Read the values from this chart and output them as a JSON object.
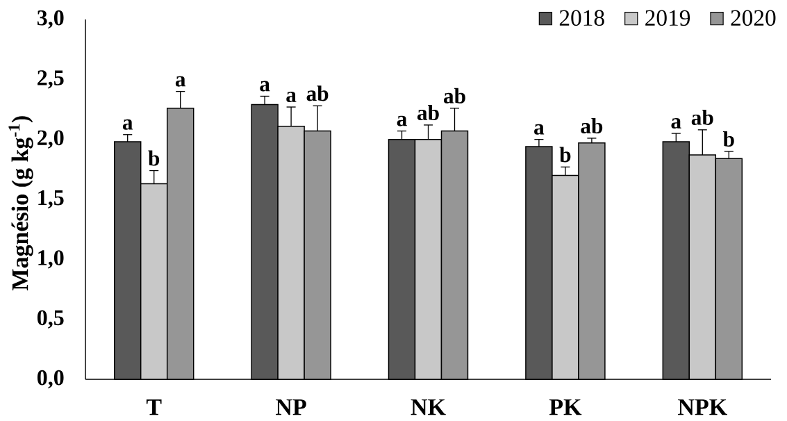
{
  "chart_data": {
    "type": "bar",
    "ylabel": "Magnésio (g kg$^{-1}$)",
    "categories": [
      "T",
      "NP",
      "NK",
      "PK",
      "NPK"
    ],
    "series": [
      {
        "name": "2018",
        "color": "#595959",
        "values": [
          1.98,
          2.29,
          2.0,
          1.94,
          1.98
        ],
        "errors": [
          [
            1.98,
            2.04
          ],
          [
            2.29,
            2.36
          ],
          [
            2.0,
            2.07
          ],
          [
            1.94,
            2.0
          ],
          [
            1.98,
            2.05
          ]
        ],
        "value_labels": [
          "a",
          "a",
          "a",
          "a",
          "a"
        ]
      },
      {
        "name": "2019",
        "color": "#c8c8c8",
        "values": [
          1.63,
          2.11,
          2.0,
          1.7,
          1.87
        ],
        "errors": [
          [
            1.63,
            1.74
          ],
          [
            2.11,
            2.27
          ],
          [
            2.0,
            2.12
          ],
          [
            1.7,
            1.77
          ],
          [
            1.87,
            2.08
          ]
        ],
        "value_labels": [
          "b",
          "a",
          "ab",
          "b",
          "ab"
        ]
      },
      {
        "name": "2020",
        "color": "#969696",
        "values": [
          2.26,
          2.07,
          2.07,
          1.97,
          1.84
        ],
        "errors": [
          [
            2.26,
            2.4
          ],
          [
            2.07,
            2.28
          ],
          [
            2.07,
            2.26
          ],
          [
            1.97,
            2.01
          ],
          [
            1.84,
            1.9
          ]
        ],
        "value_labels": [
          "a",
          "ab",
          "ab",
          "ab",
          "b"
        ]
      }
    ],
    "ylim": [
      0,
      3.0
    ],
    "yticks": [
      {
        "value": 0,
        "label": "0,0"
      },
      {
        "value": 0.5,
        "label": "0,5"
      },
      {
        "value": 1.0,
        "label": "1,0"
      },
      {
        "value": 1.5,
        "label": "1,5"
      },
      {
        "value": 2.0,
        "label": "2,0"
      },
      {
        "value": 2.5,
        "label": "2,5"
      },
      {
        "value": 3.0,
        "label": "3,0"
      }
    ],
    "legend": "top right"
  }
}
